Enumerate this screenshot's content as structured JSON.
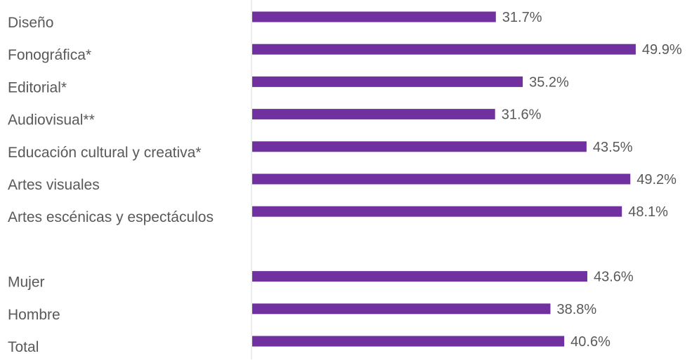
{
  "chart_data": {
    "type": "bar",
    "orientation": "horizontal",
    "categories": [
      "Diseño",
      "Fonográfica*",
      "Editorial*",
      "Audiovisual**",
      "Educación cultural y creativa*",
      "Artes visuales",
      "Artes escénicas y espectáculos",
      "",
      "Mujer",
      "Hombre",
      "Total"
    ],
    "values": [
      31.7,
      49.9,
      35.2,
      31.6,
      43.5,
      49.2,
      48.1,
      null,
      43.6,
      38.8,
      40.6
    ],
    "value_labels": [
      "31.7%",
      "49.9%",
      "35.2%",
      "31.6%",
      "43.5%",
      "49.2%",
      "48.1%",
      "",
      "43.6%",
      "38.8%",
      "40.6%"
    ],
    "xlim": [
      0,
      50
    ],
    "grid": false,
    "legend": "none",
    "colors": {
      "bar": "#7030a0",
      "axis": "#d9d9d9",
      "text": "#595959"
    }
  }
}
